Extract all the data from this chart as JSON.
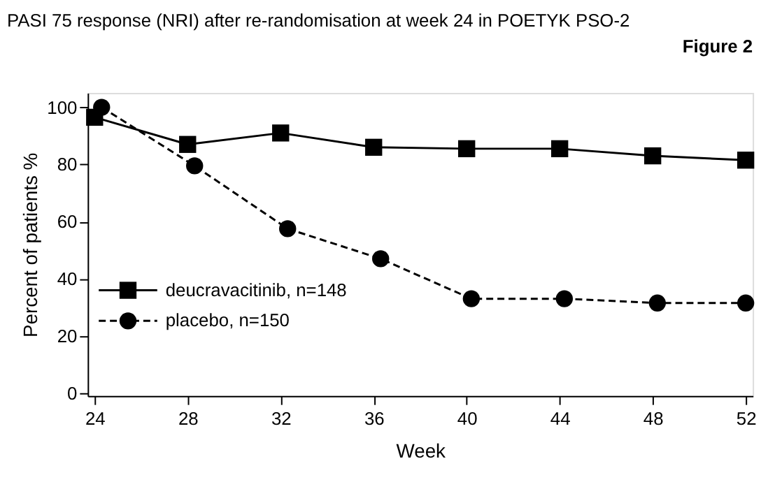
{
  "chart_data": {
    "type": "line",
    "title": "PASI 75 response (NRI) after re-randomisation at week 24 in POETYK PSO-2",
    "annotations": [
      "Figure 2"
    ],
    "xlabel": "Week",
    "ylabel": "Percent of patients %",
    "xlim": [
      23.7,
      52.3
    ],
    "xticks": [
      24,
      28,
      32,
      36,
      40,
      44,
      48,
      52
    ],
    "ylim": [
      -1,
      105
    ],
    "yticks": [
      0,
      20,
      40,
      60,
      80,
      100
    ],
    "grid": false,
    "legend": "left",
    "series": [
      {
        "name": "deucravacitinib, n=148",
        "color": "#000000",
        "marker": "square",
        "line_style": "solid",
        "x": [
          24,
          28,
          32,
          36,
          40,
          44,
          48,
          52
        ],
        "values": [
          96.5,
          87,
          91,
          86,
          85.5,
          85.5,
          83,
          81.5
        ]
      },
      {
        "name": "placebo, n=150",
        "color": "#000000",
        "marker": "circle",
        "line_style": "dashed",
        "x": [
          24.3,
          28.3,
          32.3,
          36.3,
          40.2,
          44.2,
          48.2,
          52
        ],
        "values": [
          100,
          79.5,
          57.5,
          47,
          33,
          33,
          31.5,
          31.5
        ]
      }
    ]
  }
}
